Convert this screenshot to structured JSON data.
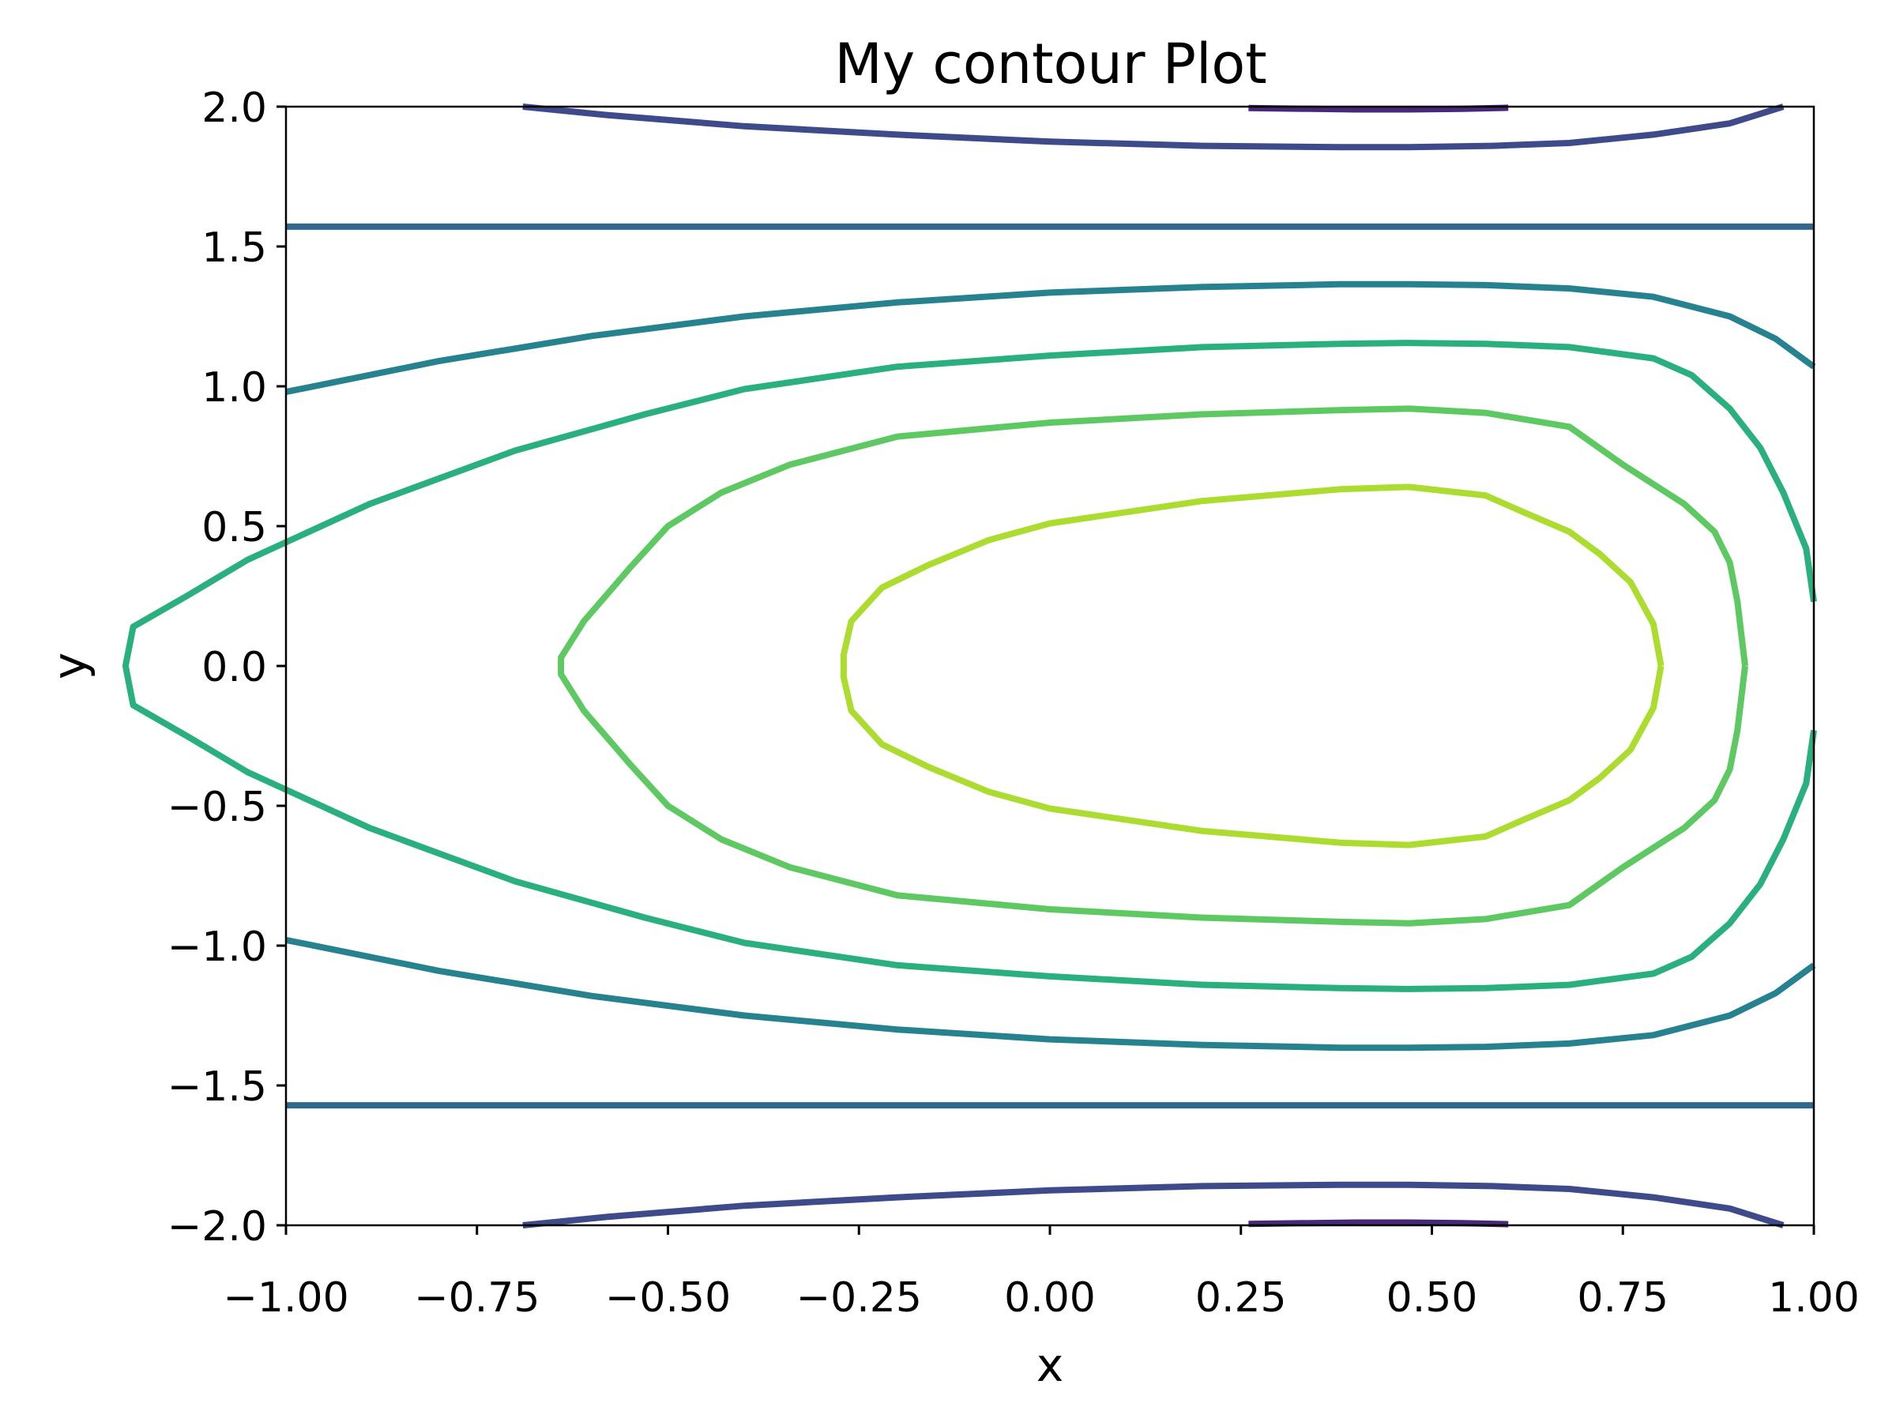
{
  "chart_data": {
    "type": "contour",
    "title": "My contour Plot",
    "xlabel": "x",
    "ylabel": "y",
    "xlim": [
      -1.0,
      1.0
    ],
    "ylim": [
      -2.0,
      2.0
    ],
    "xticks": [
      -1.0,
      -0.75,
      -0.5,
      -0.25,
      0.0,
      0.25,
      0.5,
      0.75,
      1.0
    ],
    "xtick_labels": [
      "−1.00",
      "−0.75",
      "−0.50",
      "−0.25",
      "0.00",
      "0.25",
      "0.50",
      "0.75",
      "1.00"
    ],
    "yticks": [
      2.0,
      1.5,
      1.0,
      0.5,
      0.0,
      -0.5,
      -1.0,
      -1.5,
      -2.0
    ],
    "ytick_labels": [
      "2.0",
      "1.5",
      "1.0",
      "0.5",
      "0.0",
      "−0.5",
      "−1.0",
      "−1.5",
      "−2.0"
    ],
    "grid": false,
    "colormap": "viridis",
    "contours": [
      {
        "level": "l0",
        "color": "#482878",
        "segments": [
          [
            [
              0.26,
              1.995
            ],
            [
              0.4,
              1.99
            ],
            [
              0.47,
              1.99
            ],
            [
              0.54,
              1.992
            ],
            [
              0.6,
              1.996
            ]
          ],
          [
            [
              0.26,
              -1.995
            ],
            [
              0.4,
              -1.99
            ],
            [
              0.47,
              -1.99
            ],
            [
              0.54,
              -1.992
            ],
            [
              0.6,
              -1.996
            ]
          ]
        ]
      },
      {
        "level": "l1",
        "color": "#3e4a89",
        "segments": [
          [
            [
              -0.69,
              2.0
            ],
            [
              -0.58,
              1.97
            ],
            [
              -0.4,
              1.93
            ],
            [
              -0.2,
              1.9
            ],
            [
              0.0,
              1.875
            ],
            [
              0.2,
              1.86
            ],
            [
              0.38,
              1.855
            ],
            [
              0.47,
              1.855
            ],
            [
              0.58,
              1.86
            ],
            [
              0.68,
              1.87
            ],
            [
              0.79,
              1.9
            ],
            [
              0.89,
              1.94
            ],
            [
              0.96,
              2.0
            ]
          ],
          [
            [
              -0.69,
              -2.0
            ],
            [
              -0.58,
              -1.97
            ],
            [
              -0.4,
              -1.93
            ],
            [
              -0.2,
              -1.9
            ],
            [
              0.0,
              -1.875
            ],
            [
              0.2,
              -1.86
            ],
            [
              0.38,
              -1.855
            ],
            [
              0.47,
              -1.855
            ],
            [
              0.58,
              -1.86
            ],
            [
              0.68,
              -1.87
            ],
            [
              0.79,
              -1.9
            ],
            [
              0.89,
              -1.94
            ],
            [
              0.96,
              -2.0
            ]
          ]
        ]
      },
      {
        "level": "l2",
        "color": "#31688e",
        "segments": [
          [
            [
              -1.0,
              1.571
            ],
            [
              1.0,
              1.571
            ]
          ],
          [
            [
              -1.0,
              -1.571
            ],
            [
              1.0,
              -1.571
            ]
          ]
        ]
      },
      {
        "level": "l3",
        "color": "#26828e",
        "segments": [
          [
            [
              -1.0,
              0.98
            ],
            [
              -0.8,
              1.09
            ],
            [
              -0.6,
              1.18
            ],
            [
              -0.4,
              1.25
            ],
            [
              -0.2,
              1.3
            ],
            [
              0.0,
              1.335
            ],
            [
              0.2,
              1.355
            ],
            [
              0.38,
              1.365
            ],
            [
              0.47,
              1.365
            ],
            [
              0.57,
              1.362
            ],
            [
              0.68,
              1.35
            ],
            [
              0.79,
              1.32
            ],
            [
              0.89,
              1.25
            ],
            [
              0.95,
              1.17
            ],
            [
              1.0,
              1.07
            ]
          ],
          [
            [
              -1.0,
              -0.98
            ],
            [
              -0.8,
              -1.09
            ],
            [
              -0.6,
              -1.18
            ],
            [
              -0.4,
              -1.25
            ],
            [
              -0.2,
              -1.3
            ],
            [
              0.0,
              -1.335
            ],
            [
              0.2,
              -1.355
            ],
            [
              0.38,
              -1.365
            ],
            [
              0.47,
              -1.365
            ],
            [
              0.57,
              -1.362
            ],
            [
              0.68,
              -1.35
            ],
            [
              0.79,
              -1.32
            ],
            [
              0.89,
              -1.25
            ],
            [
              0.95,
              -1.17
            ],
            [
              1.0,
              -1.07
            ]
          ]
        ]
      },
      {
        "level": "l4",
        "color": "#2ab07f",
        "segments": [
          [
            [
              1.0,
              0.23
            ],
            [
              0.99,
              0.42
            ],
            [
              0.96,
              0.62
            ],
            [
              0.93,
              0.78
            ],
            [
              0.89,
              0.92
            ],
            [
              0.84,
              1.04
            ],
            [
              0.79,
              1.1
            ],
            [
              0.68,
              1.14
            ],
            [
              0.57,
              1.152
            ],
            [
              0.47,
              1.155
            ],
            [
              0.38,
              1.152
            ],
            [
              0.2,
              1.14
            ],
            [
              0.0,
              1.11
            ],
            [
              -0.2,
              1.07
            ],
            [
              -0.4,
              0.99
            ],
            [
              -0.53,
              0.9
            ],
            [
              -0.7,
              0.77
            ],
            [
              -0.89,
              0.58
            ],
            [
              -1.05,
              0.38
            ],
            [
              -1.13,
              0.25
            ],
            [
              -1.2,
              0.14
            ],
            [
              -1.21,
              0.0
            ],
            [
              -1.2,
              -0.14
            ],
            [
              -1.13,
              -0.25
            ],
            [
              -1.05,
              -0.38
            ],
            [
              -0.89,
              -0.58
            ],
            [
              -0.7,
              -0.77
            ],
            [
              -0.53,
              -0.9
            ],
            [
              -0.4,
              -0.99
            ],
            [
              -0.2,
              -1.07
            ],
            [
              0.0,
              -1.11
            ],
            [
              0.2,
              -1.14
            ],
            [
              0.38,
              -1.152
            ],
            [
              0.47,
              -1.155
            ],
            [
              0.57,
              -1.152
            ],
            [
              0.68,
              -1.14
            ],
            [
              0.79,
              -1.1
            ],
            [
              0.84,
              -1.04
            ],
            [
              0.89,
              -0.92
            ],
            [
              0.93,
              -0.78
            ],
            [
              0.96,
              -0.62
            ],
            [
              0.99,
              -0.42
            ],
            [
              1.0,
              -0.23
            ]
          ]
        ]
      },
      {
        "level": "l5",
        "color": "#5ec962",
        "segments": [
          [
            [
              0.91,
              0.0
            ],
            [
              0.9,
              0.23
            ],
            [
              0.89,
              0.37
            ],
            [
              0.87,
              0.48
            ],
            [
              0.83,
              0.58
            ],
            [
              0.79,
              0.65
            ],
            [
              0.75,
              0.72
            ],
            [
              0.68,
              0.855
            ],
            [
              0.57,
              0.905
            ],
            [
              0.47,
              0.92
            ],
            [
              0.38,
              0.915
            ],
            [
              0.2,
              0.9
            ],
            [
              0.0,
              0.87
            ],
            [
              -0.2,
              0.82
            ],
            [
              -0.34,
              0.72
            ],
            [
              -0.43,
              0.62
            ],
            [
              -0.5,
              0.5
            ],
            [
              -0.55,
              0.35
            ],
            [
              -0.61,
              0.16
            ],
            [
              -0.64,
              0.03
            ],
            [
              -0.64,
              -0.03
            ],
            [
              -0.61,
              -0.16
            ],
            [
              -0.55,
              -0.35
            ],
            [
              -0.5,
              -0.5
            ],
            [
              -0.43,
              -0.62
            ],
            [
              -0.34,
              -0.72
            ],
            [
              -0.2,
              -0.82
            ],
            [
              0.0,
              -0.87
            ],
            [
              0.2,
              -0.9
            ],
            [
              0.38,
              -0.915
            ],
            [
              0.47,
              -0.92
            ],
            [
              0.57,
              -0.905
            ],
            [
              0.68,
              -0.855
            ],
            [
              0.75,
              -0.72
            ],
            [
              0.79,
              -0.65
            ],
            [
              0.83,
              -0.58
            ],
            [
              0.87,
              -0.48
            ],
            [
              0.89,
              -0.37
            ],
            [
              0.9,
              -0.23
            ],
            [
              0.91,
              0.0
            ]
          ]
        ]
      },
      {
        "level": "l6",
        "color": "#addc30",
        "segments": [
          [
            [
              0.8,
              0.0
            ],
            [
              0.79,
              0.15
            ],
            [
              0.76,
              0.3
            ],
            [
              0.72,
              0.4
            ],
            [
              0.68,
              0.48
            ],
            [
              0.62,
              0.55
            ],
            [
              0.57,
              0.61
            ],
            [
              0.47,
              0.64
            ],
            [
              0.38,
              0.632
            ],
            [
              0.2,
              0.59
            ],
            [
              0.0,
              0.51
            ],
            [
              -0.08,
              0.45
            ],
            [
              -0.16,
              0.36
            ],
            [
              -0.22,
              0.28
            ],
            [
              -0.26,
              0.16
            ],
            [
              -0.27,
              0.04
            ],
            [
              -0.27,
              -0.04
            ],
            [
              -0.26,
              -0.16
            ],
            [
              -0.22,
              -0.28
            ],
            [
              -0.16,
              -0.36
            ],
            [
              -0.08,
              -0.45
            ],
            [
              0.0,
              -0.51
            ],
            [
              0.2,
              -0.59
            ],
            [
              0.38,
              -0.632
            ],
            [
              0.47,
              -0.64
            ],
            [
              0.57,
              -0.61
            ],
            [
              0.62,
              -0.55
            ],
            [
              0.68,
              -0.48
            ],
            [
              0.72,
              -0.4
            ],
            [
              0.76,
              -0.3
            ],
            [
              0.79,
              -0.15
            ],
            [
              0.8,
              0.0
            ]
          ]
        ]
      }
    ]
  }
}
